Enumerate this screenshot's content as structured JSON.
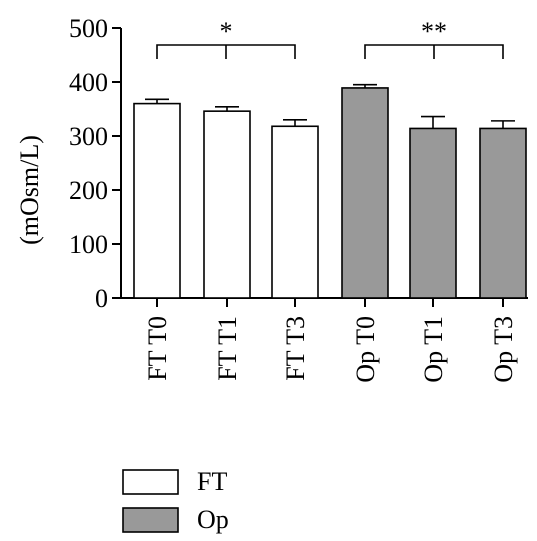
{
  "chart_data": {
    "type": "bar",
    "ylabel": "(mOsm/L)",
    "ylim": [
      0,
      500
    ],
    "yticks": [
      0,
      100,
      200,
      300,
      400,
      500
    ],
    "categories": [
      "FT T0",
      "FT T1",
      "FT T3",
      "Op T0",
      "Op T1",
      "Op T3"
    ],
    "values": [
      360,
      346,
      318,
      389,
      314,
      314
    ],
    "errors": [
      8,
      8,
      12,
      6,
      22,
      14
    ],
    "groups": [
      "FT",
      "FT",
      "FT",
      "Op",
      "Op",
      "Op"
    ],
    "legend": [
      {
        "name": "FT",
        "color": "#ffffff"
      },
      {
        "name": "Op",
        "color": "#999999"
      }
    ],
    "significance": [
      {
        "from": 0,
        "to": 2,
        "label": "*"
      },
      {
        "from": 3,
        "to": 5,
        "label": "**"
      }
    ],
    "grid": false,
    "legend_position": "bottom-left"
  }
}
